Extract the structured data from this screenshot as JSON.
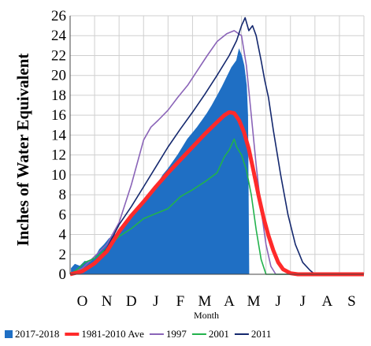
{
  "chart_data": {
    "type": "area",
    "title": "",
    "xlabel": "Month",
    "ylabel": "Inches of Water Equivalent",
    "ylim": [
      0,
      26
    ],
    "yticks": [
      0,
      2,
      4,
      6,
      8,
      10,
      12,
      14,
      16,
      18,
      20,
      22,
      24,
      26
    ],
    "xlim": [
      0,
      12
    ],
    "xticks": [
      "O",
      "N",
      "D",
      "J",
      "F",
      "M",
      "A",
      "M",
      "J",
      "J",
      "A",
      "S"
    ],
    "grid": true,
    "legend_position": "bottom",
    "series": [
      {
        "name": "2017-2018",
        "style": "filled",
        "color": "#1f6fc4",
        "points": [
          [
            0.05,
            0.6
          ],
          [
            0.2,
            1.0
          ],
          [
            0.4,
            0.8
          ],
          [
            0.6,
            1.3
          ],
          [
            0.8,
            1.2
          ],
          [
            1.0,
            1.6
          ],
          [
            1.2,
            2.5
          ],
          [
            1.4,
            3.0
          ],
          [
            1.6,
            3.6
          ],
          [
            1.8,
            3.9
          ],
          [
            2.0,
            4.3
          ],
          [
            2.2,
            5.0
          ],
          [
            2.4,
            5.6
          ],
          [
            2.6,
            6.2
          ],
          [
            2.8,
            6.8
          ],
          [
            3.0,
            7.4
          ],
          [
            3.2,
            7.9
          ],
          [
            3.4,
            8.6
          ],
          [
            3.6,
            9.2
          ],
          [
            3.8,
            10.0
          ],
          [
            4.0,
            10.6
          ],
          [
            4.2,
            11.3
          ],
          [
            4.4,
            12.0
          ],
          [
            4.6,
            12.8
          ],
          [
            4.8,
            13.6
          ],
          [
            5.0,
            14.2
          ],
          [
            5.2,
            14.8
          ],
          [
            5.4,
            15.5
          ],
          [
            5.6,
            16.2
          ],
          [
            5.8,
            17.0
          ],
          [
            6.0,
            17.9
          ],
          [
            6.2,
            18.8
          ],
          [
            6.4,
            19.8
          ],
          [
            6.6,
            20.8
          ],
          [
            6.8,
            21.5
          ],
          [
            6.9,
            22.6
          ],
          [
            7.0,
            22.0
          ],
          [
            7.1,
            21.0
          ],
          [
            7.2,
            19.0
          ],
          [
            7.25,
            16.0
          ],
          [
            7.3,
            0
          ]
        ]
      },
      {
        "name": "1981-2010 Ave",
        "style": "line",
        "color": "#ff2a2a",
        "points": [
          [
            0.0,
            0.0
          ],
          [
            0.5,
            0.3
          ],
          [
            1.0,
            1.1
          ],
          [
            1.5,
            2.3
          ],
          [
            2.0,
            4.3
          ],
          [
            2.5,
            5.9
          ],
          [
            3.0,
            7.3
          ],
          [
            3.5,
            8.8
          ],
          [
            4.0,
            10.2
          ],
          [
            4.5,
            11.5
          ],
          [
            5.0,
            12.8
          ],
          [
            5.5,
            14.1
          ],
          [
            6.0,
            15.3
          ],
          [
            6.3,
            16.0
          ],
          [
            6.5,
            16.3
          ],
          [
            6.7,
            16.2
          ],
          [
            6.9,
            15.5
          ],
          [
            7.1,
            14.3
          ],
          [
            7.3,
            12.6
          ],
          [
            7.5,
            10.3
          ],
          [
            7.7,
            7.9
          ],
          [
            7.9,
            5.7
          ],
          [
            8.1,
            3.9
          ],
          [
            8.3,
            2.4
          ],
          [
            8.5,
            1.2
          ],
          [
            8.7,
            0.5
          ],
          [
            9.0,
            0.1
          ],
          [
            9.3,
            0.0
          ],
          [
            12.0,
            0.0
          ]
        ]
      },
      {
        "name": "1997",
        "style": "line",
        "color": "#8a64b8",
        "points": [
          [
            0.0,
            0.0
          ],
          [
            0.5,
            0.6
          ],
          [
            1.0,
            1.8
          ],
          [
            1.5,
            3.0
          ],
          [
            2.0,
            5.2
          ],
          [
            2.5,
            9.0
          ],
          [
            3.0,
            13.5
          ],
          [
            3.3,
            14.8
          ],
          [
            3.6,
            15.5
          ],
          [
            4.0,
            16.5
          ],
          [
            4.4,
            17.8
          ],
          [
            4.8,
            19.0
          ],
          [
            5.2,
            20.5
          ],
          [
            5.6,
            22.0
          ],
          [
            6.0,
            23.4
          ],
          [
            6.4,
            24.2
          ],
          [
            6.7,
            24.5
          ],
          [
            7.0,
            24.0
          ],
          [
            7.2,
            21.0
          ],
          [
            7.4,
            16.0
          ],
          [
            7.6,
            11.0
          ],
          [
            7.8,
            6.5
          ],
          [
            8.0,
            3.0
          ],
          [
            8.2,
            0.8
          ],
          [
            8.4,
            0.0
          ],
          [
            12.0,
            0.0
          ]
        ]
      },
      {
        "name": "2001",
        "style": "line",
        "color": "#22b24c",
        "points": [
          [
            0.0,
            0.0
          ],
          [
            0.3,
            0.5
          ],
          [
            0.6,
            1.2
          ],
          [
            1.0,
            1.6
          ],
          [
            1.5,
            2.6
          ],
          [
            2.0,
            3.8
          ],
          [
            2.5,
            4.6
          ],
          [
            3.0,
            5.6
          ],
          [
            3.5,
            6.1
          ],
          [
            4.0,
            6.6
          ],
          [
            4.5,
            7.8
          ],
          [
            5.0,
            8.5
          ],
          [
            5.5,
            9.3
          ],
          [
            6.0,
            10.2
          ],
          [
            6.3,
            11.8
          ],
          [
            6.5,
            12.5
          ],
          [
            6.7,
            13.6
          ],
          [
            6.8,
            12.8
          ],
          [
            7.0,
            12.0
          ],
          [
            7.2,
            10.5
          ],
          [
            7.4,
            8.0
          ],
          [
            7.6,
            4.5
          ],
          [
            7.8,
            1.5
          ],
          [
            8.0,
            0.0
          ],
          [
            12.0,
            0.0
          ]
        ]
      },
      {
        "name": "2011",
        "style": "line",
        "color": "#14286e",
        "points": [
          [
            0.0,
            0.0
          ],
          [
            0.5,
            0.2
          ],
          [
            1.0,
            1.0
          ],
          [
            1.5,
            2.6
          ],
          [
            2.0,
            5.0
          ],
          [
            2.5,
            6.8
          ],
          [
            3.0,
            8.8
          ],
          [
            3.5,
            10.8
          ],
          [
            4.0,
            12.8
          ],
          [
            4.5,
            14.6
          ],
          [
            5.0,
            16.3
          ],
          [
            5.5,
            18.1
          ],
          [
            6.0,
            20.0
          ],
          [
            6.5,
            22.0
          ],
          [
            6.8,
            23.5
          ],
          [
            7.0,
            25.0
          ],
          [
            7.15,
            25.8
          ],
          [
            7.3,
            24.5
          ],
          [
            7.45,
            25.0
          ],
          [
            7.6,
            24.0
          ],
          [
            7.8,
            21.5
          ],
          [
            7.95,
            19.5
          ],
          [
            8.1,
            17.8
          ],
          [
            8.3,
            14.5
          ],
          [
            8.6,
            10.0
          ],
          [
            8.9,
            6.0
          ],
          [
            9.2,
            3.0
          ],
          [
            9.5,
            1.2
          ],
          [
            9.8,
            0.4
          ],
          [
            10.0,
            0.0
          ],
          [
            12.0,
            0.0
          ]
        ]
      }
    ]
  }
}
